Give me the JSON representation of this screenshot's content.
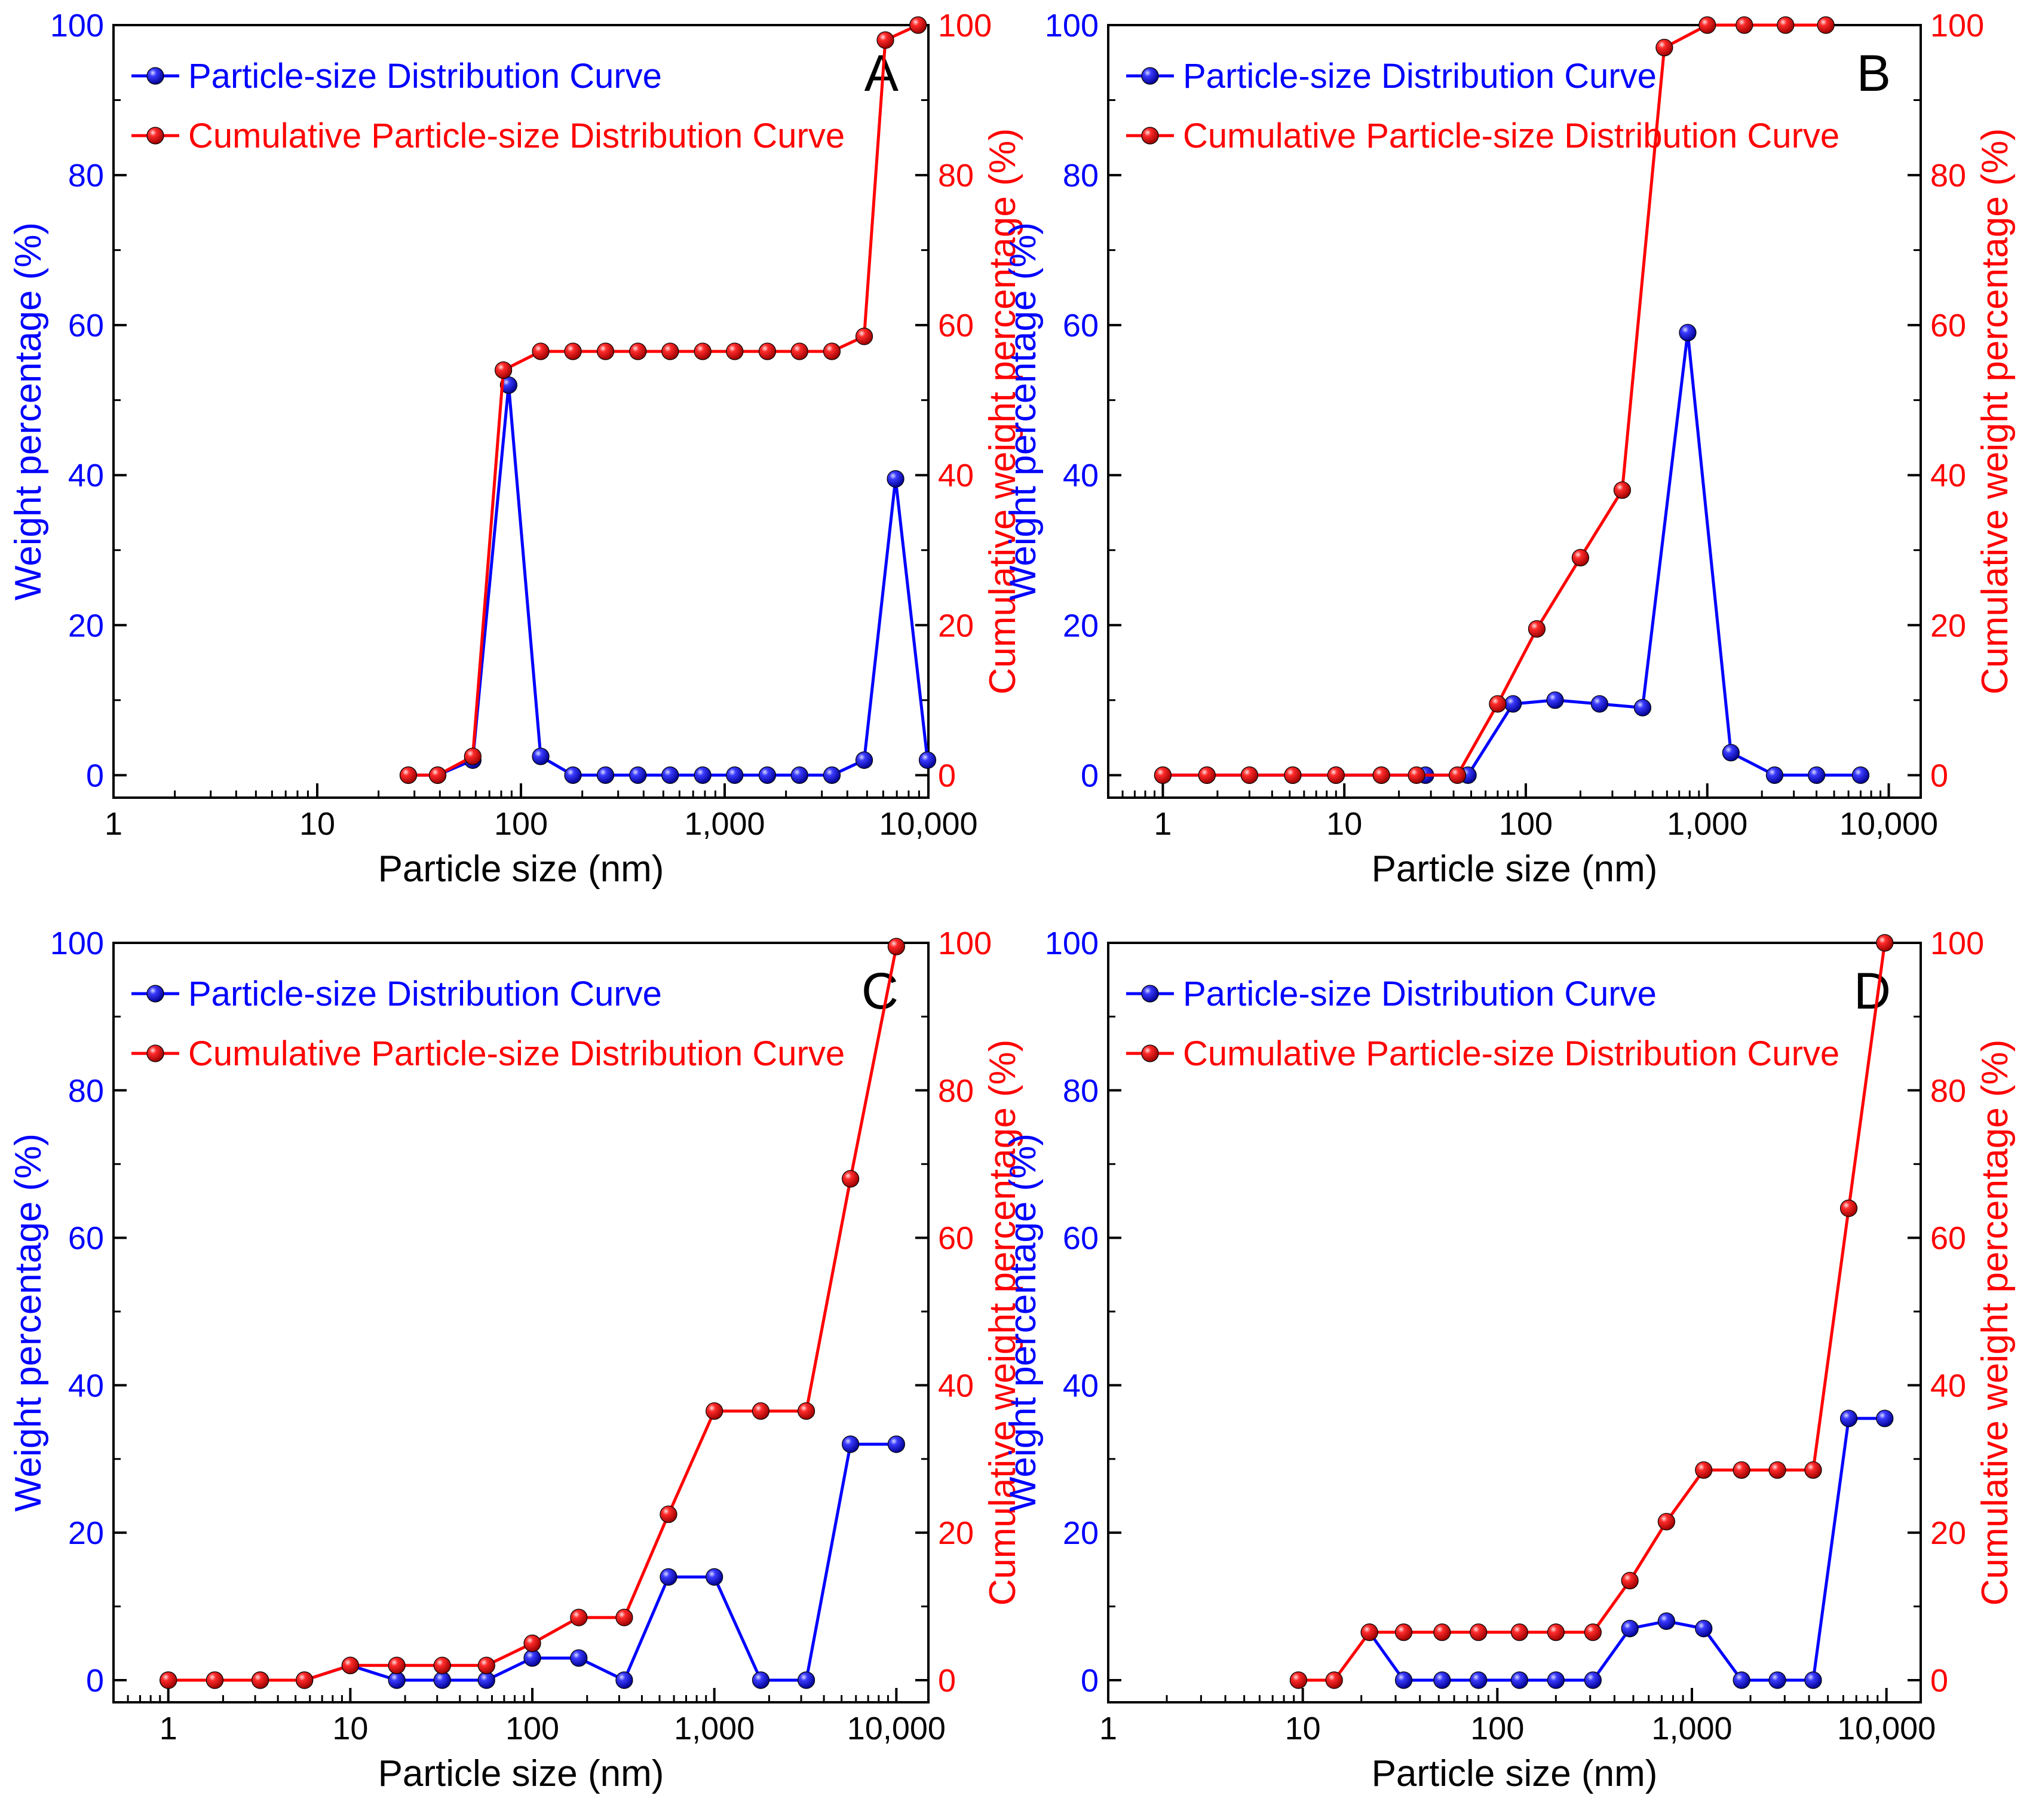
{
  "colors": {
    "distribution": "#0000ff",
    "cumulative": "#ff0000",
    "frame": "#000000"
  },
  "chart_data": [
    {
      "type": "line",
      "panel": "A",
      "xlabel": "Particle size (nm)",
      "ylabel": "Weight percentage (%)",
      "y2label": "Cumulative weight percentage (%)",
      "xscale": "log",
      "xlim": [
        1,
        10000
      ],
      "ylim": [
        -3,
        100
      ],
      "xticks": [
        1,
        10,
        100,
        1000,
        10000
      ],
      "xtick_labels": [
        "1",
        "10",
        "100",
        "1,000",
        "10,000"
      ],
      "yticks": [
        0,
        20,
        40,
        60,
        80,
        100
      ],
      "ytick_labels": [
        "0",
        "20",
        "40",
        "60",
        "80",
        "100"
      ],
      "legend_position": "top-left",
      "series": [
        {
          "name": "Particle-size Distribution Curve",
          "axis": "left",
          "x": [
            28,
            39,
            58,
            87,
            125,
            180,
            260,
            375,
            540,
            780,
            1120,
            1620,
            2330,
            3360,
            4840,
            6900,
            9900
          ],
          "values": [
            0,
            0,
            2,
            52,
            2.5,
            0,
            0,
            0,
            0,
            0,
            0,
            0,
            0,
            0,
            2,
            39.5,
            2
          ]
        },
        {
          "name": "Cumulative Particle-size Distribution Curve",
          "axis": "right",
          "x": [
            28,
            39,
            58,
            82,
            125,
            180,
            260,
            375,
            540,
            780,
            1120,
            1620,
            2330,
            3360,
            4840,
            6150,
            8900
          ],
          "values": [
            0,
            0,
            2.5,
            54,
            56.5,
            56.5,
            56.5,
            56.5,
            56.5,
            56.5,
            56.5,
            56.5,
            56.5,
            56.5,
            58.5,
            98,
            100
          ]
        }
      ]
    },
    {
      "type": "line",
      "panel": "B",
      "xlabel": "Particle size (nm)",
      "ylabel": "Weight percentage (%)",
      "y2label": "Cumulative weight percentage (%)",
      "xscale": "log",
      "xlim": [
        0.5,
        15000
      ],
      "ylim": [
        -3,
        100
      ],
      "xticks": [
        1,
        10,
        100,
        1000,
        10000
      ],
      "xtick_labels": [
        "1",
        "10",
        "100",
        "1,000",
        "10,000"
      ],
      "yticks": [
        0,
        20,
        40,
        60,
        80,
        100
      ],
      "ytick_labels": [
        "0",
        "20",
        "40",
        "60",
        "80",
        "100"
      ],
      "legend_position": "top-left",
      "series": [
        {
          "name": "Particle-size Distribution Curve",
          "axis": "left",
          "x": [
            1,
            1.75,
            3,
            5.2,
            9,
            16,
            28,
            48,
            85,
            145,
            255,
            440,
            780,
            1350,
            2350,
            4000,
            7000
          ],
          "values": [
            0,
            0,
            0,
            0,
            0,
            0,
            0,
            0,
            9.5,
            10,
            9.5,
            9,
            59,
            3,
            0,
            0,
            0
          ]
        },
        {
          "name": "Cumulative Particle-size Distribution Curve",
          "axis": "right",
          "x": [
            1,
            1.75,
            3,
            5.2,
            9,
            16,
            25,
            42,
            70,
            115,
            200,
            340,
            580,
            1000,
            1600,
            2700,
            4500
          ],
          "values": [
            0,
            0,
            0,
            0,
            0,
            0,
            0,
            0,
            9.5,
            19.5,
            29,
            38,
            97,
            100,
            100,
            100,
            100
          ]
        }
      ]
    },
    {
      "type": "line",
      "panel": "C",
      "xlabel": "Particle size (nm)",
      "ylabel": "Weight percentage (%)",
      "y2label": "Cumulative weight percentage (%)",
      "xscale": "log",
      "xlim": [
        0.5,
        15000
      ],
      "ylim": [
        -3,
        100
      ],
      "xticks": [
        1,
        10,
        100,
        1000,
        10000
      ],
      "xtick_labels": [
        "1",
        "10",
        "100",
        "1,000",
        "10,000"
      ],
      "yticks": [
        0,
        20,
        40,
        60,
        80,
        100
      ],
      "ytick_labels": [
        "0",
        "20",
        "40",
        "60",
        "80",
        "100"
      ],
      "legend_position": "top-left",
      "series": [
        {
          "name": "Particle-size Distribution Curve",
          "axis": "left",
          "x": [
            1,
            1.8,
            3.2,
            5.6,
            10,
            18,
            32,
            56,
            100,
            180,
            320,
            560,
            1000,
            1800,
            3200,
            5600,
            10000
          ],
          "values": [
            0,
            0,
            0,
            0,
            2,
            0,
            0,
            0,
            3,
            3,
            0,
            14,
            14,
            0,
            0,
            32,
            32
          ]
        },
        {
          "name": "Cumulative Particle-size Distribution Curve",
          "axis": "right",
          "x": [
            1,
            1.8,
            3.2,
            5.6,
            10,
            18,
            32,
            56,
            100,
            180,
            320,
            560,
            1000,
            1800,
            3200,
            5600,
            10000
          ],
          "values": [
            0,
            0,
            0,
            0,
            2,
            2,
            2,
            2,
            5,
            8.5,
            8.5,
            22.5,
            36.5,
            36.5,
            36.5,
            68,
            99.5
          ]
        }
      ]
    },
    {
      "type": "line",
      "panel": "D",
      "xlabel": "Particle size (nm)",
      "ylabel": "Weight percentage (%)",
      "y2label": "Cumulative weight percentage (%)",
      "xscale": "log",
      "xlim": [
        1,
        15000
      ],
      "ylim": [
        -3,
        100
      ],
      "xticks": [
        1,
        10,
        100,
        1000,
        10000
      ],
      "xtick_labels": [
        "1",
        "10",
        "100",
        "1,000",
        "10,000"
      ],
      "yticks": [
        0,
        20,
        40,
        60,
        80,
        100
      ],
      "ytick_labels": [
        "0",
        "20",
        "40",
        "60",
        "80",
        "100"
      ],
      "legend_position": "top-left",
      "series": [
        {
          "name": "Particle-size Distribution Curve",
          "axis": "left",
          "x": [
            22,
            33,
            52,
            80,
            130,
            200,
            310,
            480,
            740,
            1150,
            1800,
            2750,
            4200,
            6400,
            9800
          ],
          "values": [
            6.5,
            0,
            0,
            0,
            0,
            0,
            0,
            7,
            8,
            7,
            0,
            0,
            0,
            35.5,
            35.5
          ]
        },
        {
          "name": "Cumulative Particle-size Distribution Curve",
          "axis": "right",
          "x": [
            9.5,
            14.5,
            22,
            33,
            52,
            80,
            130,
            200,
            310,
            480,
            740,
            1150,
            1800,
            2750,
            4200,
            6400,
            9800
          ],
          "values": [
            0,
            0,
            6.5,
            6.5,
            6.5,
            6.5,
            6.5,
            6.5,
            6.5,
            13.5,
            21.5,
            28.5,
            28.5,
            28.5,
            28.5,
            64,
            100
          ]
        }
      ]
    }
  ]
}
